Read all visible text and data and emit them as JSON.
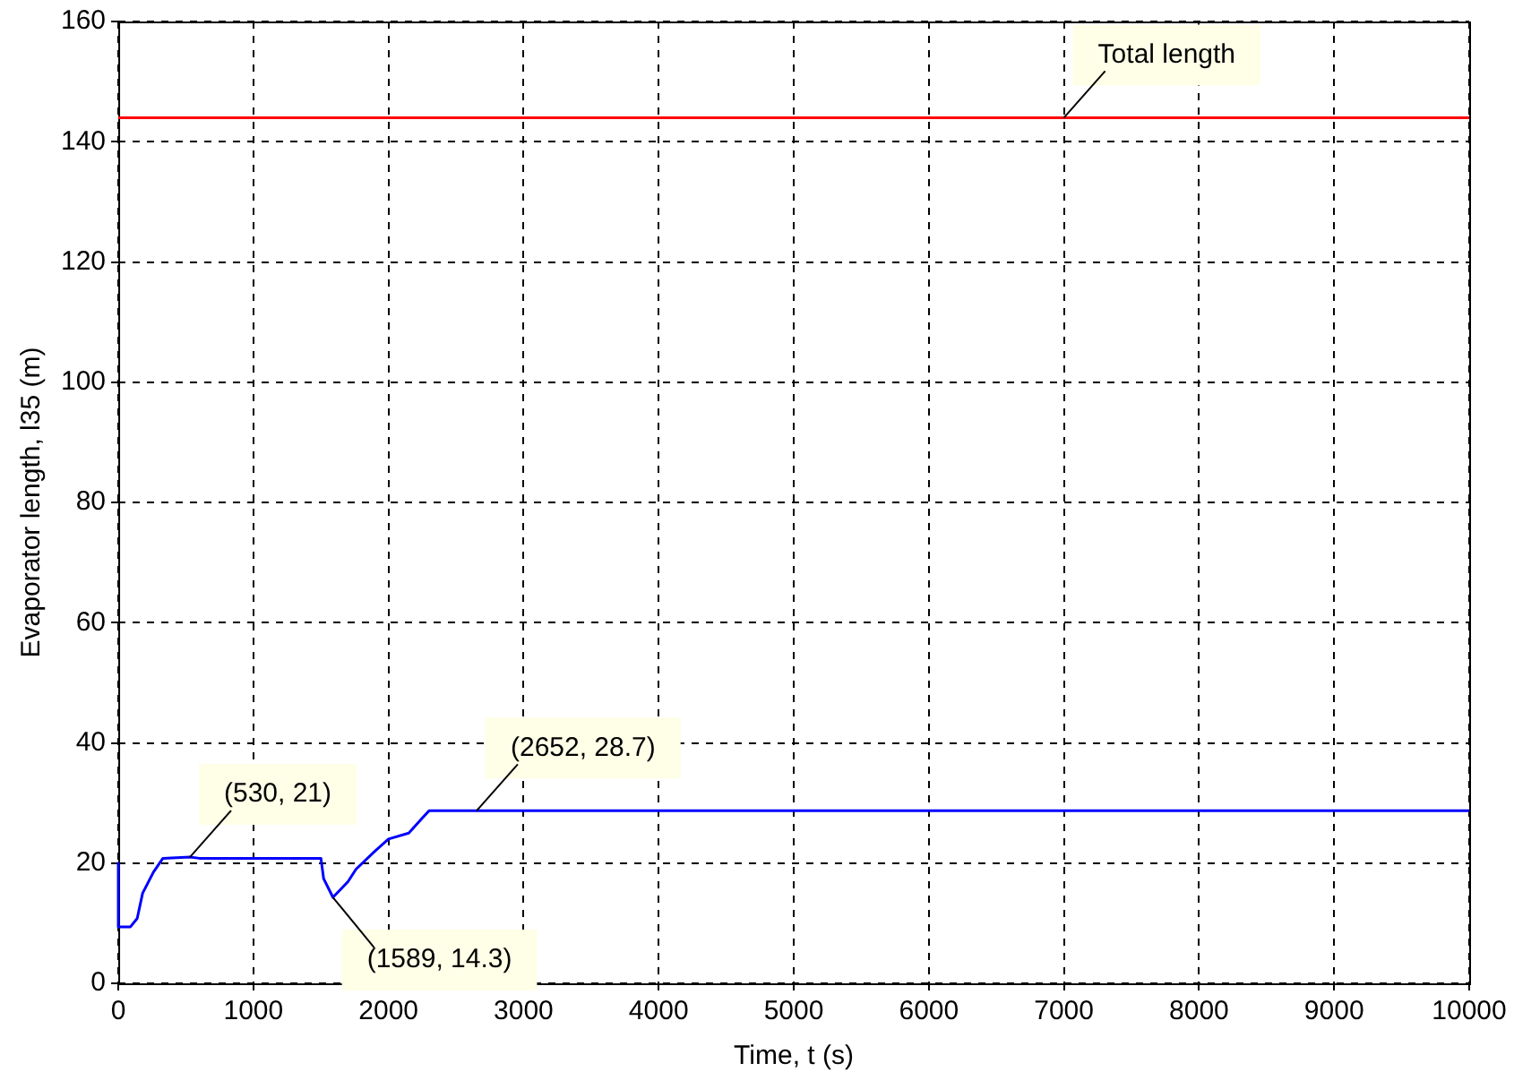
{
  "chart_data": {
    "type": "line",
    "xlabel": "Time, t (s)",
    "ylabel": "Evaporator length, l35 (m)",
    "xlim": [
      0,
      10000
    ],
    "xticks": [
      0,
      1000,
      2000,
      3000,
      4000,
      5000,
      6000,
      7000,
      8000,
      9000,
      10000
    ],
    "ylim": [
      0,
      160
    ],
    "yticks": [
      0,
      20,
      40,
      60,
      80,
      100,
      120,
      140,
      160
    ],
    "grid": true,
    "legend": false,
    "series": [
      {
        "color": "#0000ff",
        "x": [
          0,
          0,
          90,
          140,
          180,
          260,
          330,
          530,
          600,
          1500,
          1520,
          1589,
          1700,
          1760,
          1900,
          2000,
          2150,
          2250,
          2300,
          10000
        ],
        "values": [
          20,
          9.4,
          9.4,
          10.8,
          15,
          18.5,
          20.8,
          21,
          20.8,
          20.8,
          17.4,
          14.3,
          16.9,
          19,
          22,
          24,
          25,
          27.5,
          28.7,
          28.7
        ]
      },
      {
        "color": "#ff0000",
        "x": [
          0,
          10000
        ],
        "values": [
          144,
          144
        ]
      }
    ],
    "annotations": [
      {
        "text": "(530, 21)",
        "x": 530,
        "y": 21
      },
      {
        "text": "(1589, 14.3)",
        "x": 1589,
        "y": 14.3
      },
      {
        "text": "(2652, 28.7)",
        "x": 2652,
        "y": 28.7
      },
      {
        "text": "Total length",
        "x": 7000,
        "y": 144
      }
    ]
  }
}
